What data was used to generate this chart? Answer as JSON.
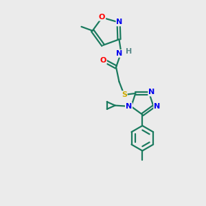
{
  "bg_color": "#ebebeb",
  "atom_colors": {
    "C": "#1a7a5e",
    "N": "#0000ee",
    "O": "#ff0000",
    "S": "#ccaa00",
    "H": "#5a8a8a"
  },
  "bond_color": "#1a7a5e",
  "line_width": 1.6,
  "figsize": [
    3.0,
    3.0
  ],
  "dpi": 100,
  "xlim": [
    0,
    10
  ],
  "ylim": [
    0,
    10
  ]
}
